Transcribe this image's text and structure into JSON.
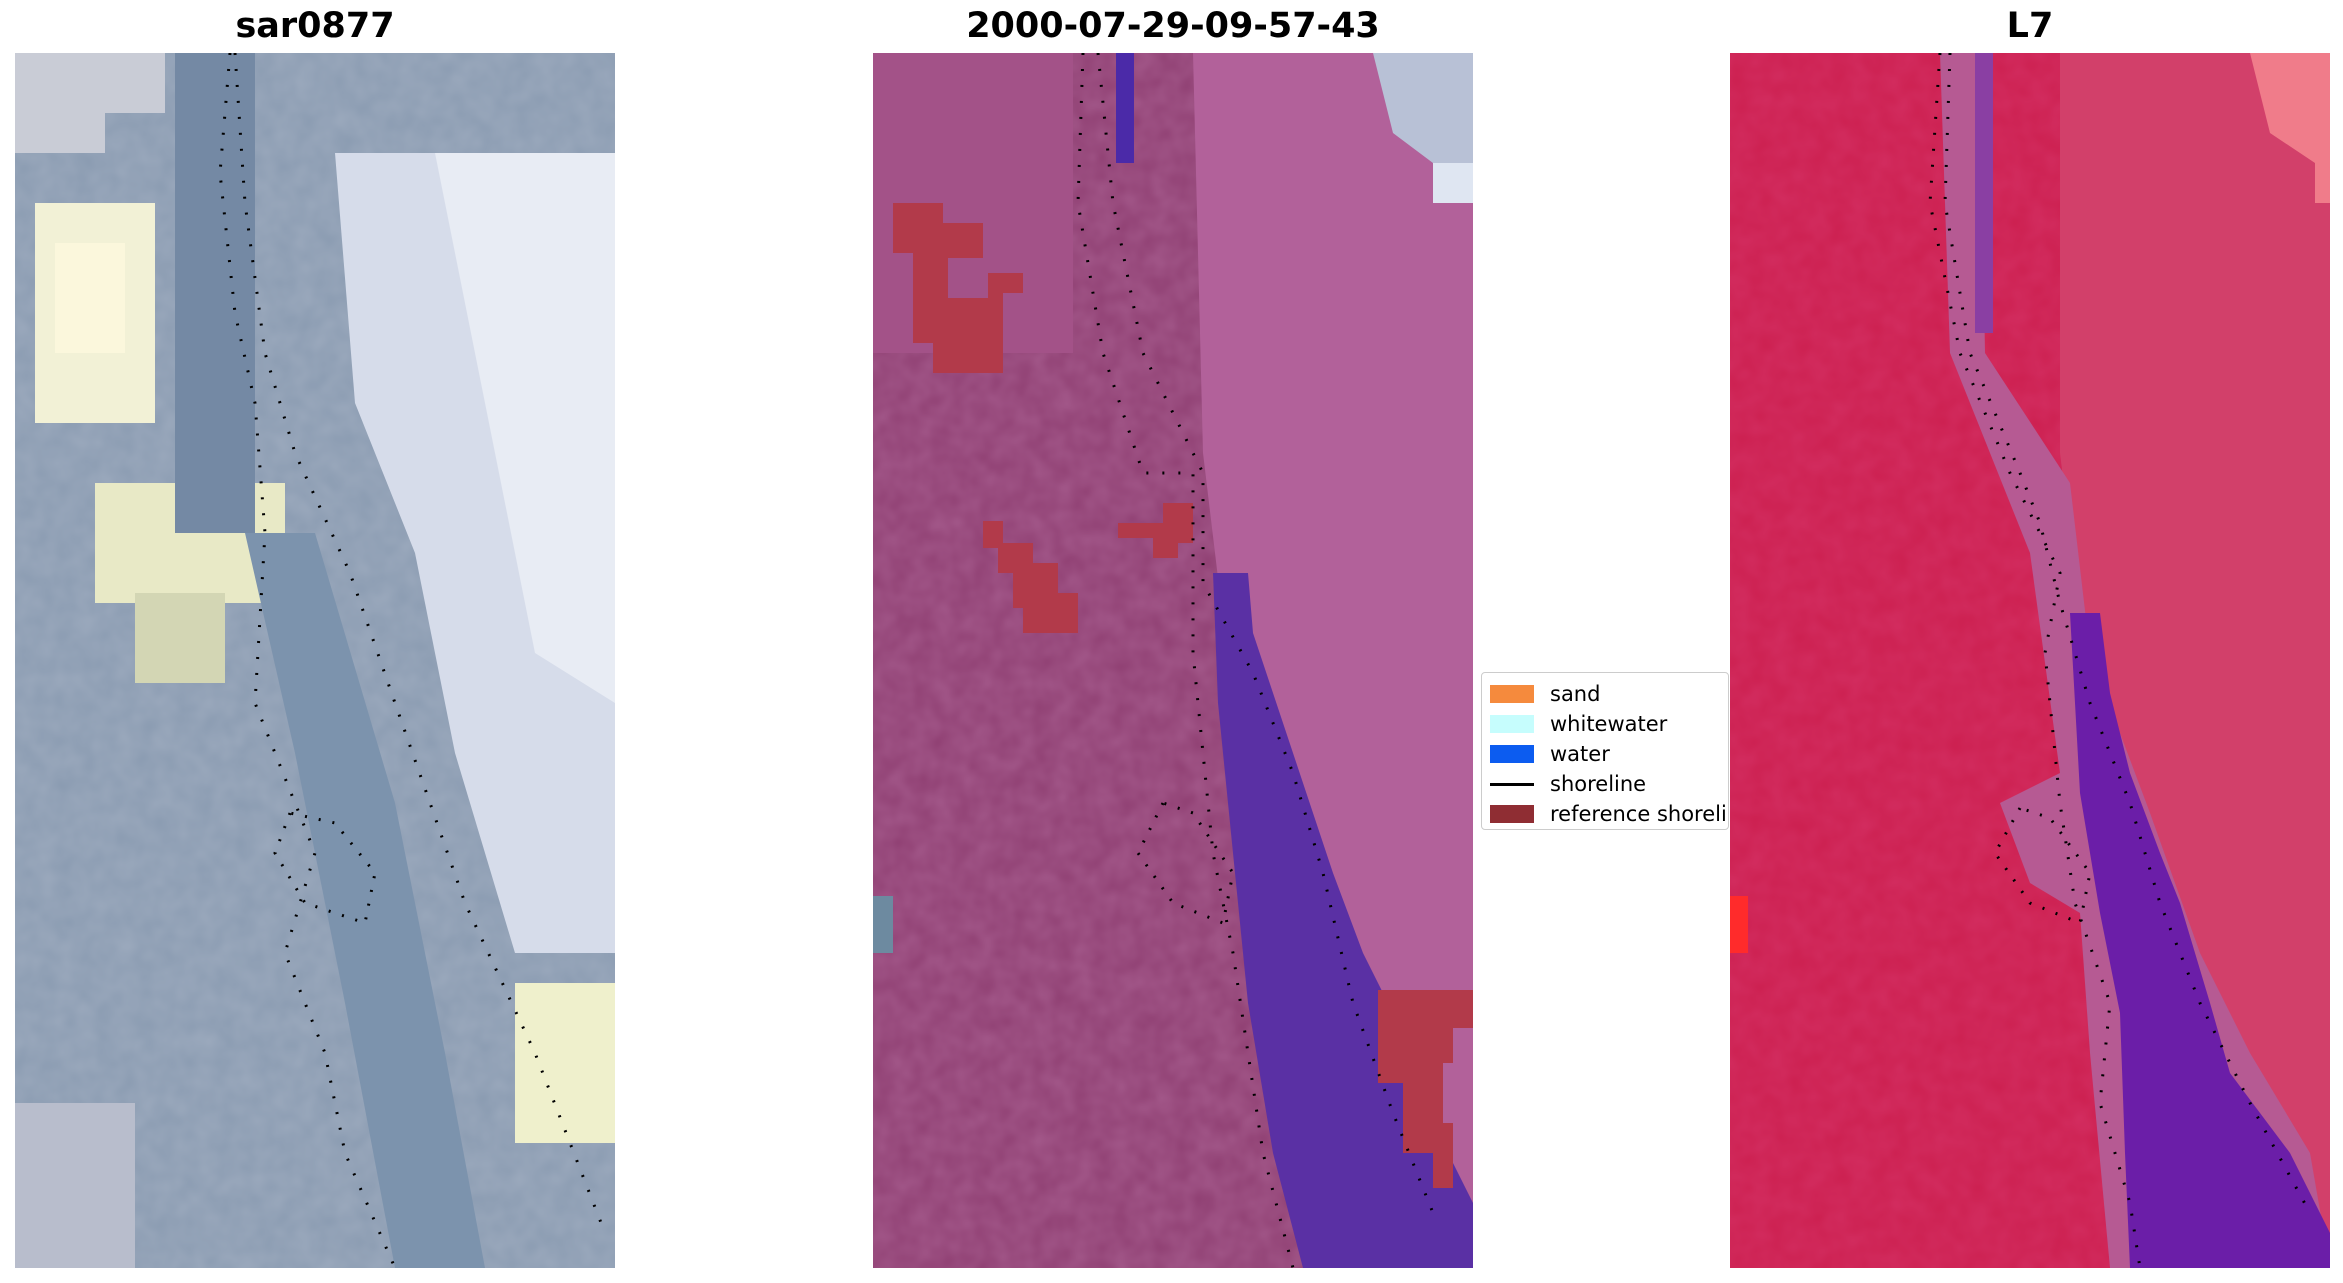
{
  "panels": [
    {
      "title": "sar0877",
      "kind": "rgb"
    },
    {
      "title": "2000-07-29-09-57-43",
      "kind": "classified"
    },
    {
      "title": "L7",
      "kind": "false-color"
    }
  ],
  "legend": {
    "items": [
      {
        "label": "sand",
        "color": "#f58a3d",
        "type": "patch"
      },
      {
        "label": "whitewater",
        "color": "#c6fdfd",
        "type": "patch"
      },
      {
        "label": "water",
        "color": "#0c5cf0",
        "type": "patch"
      },
      {
        "label": "shoreline",
        "color": "#000000",
        "type": "line"
      },
      {
        "label": "reference shoreline",
        "color": "#8f2d33",
        "type": "patch"
      }
    ]
  },
  "colors": {
    "classified_water": "#5a30a4",
    "classified_reference": "#b23a4a",
    "classified_base": "#9b4a80",
    "l7_base": "#d22a55"
  }
}
